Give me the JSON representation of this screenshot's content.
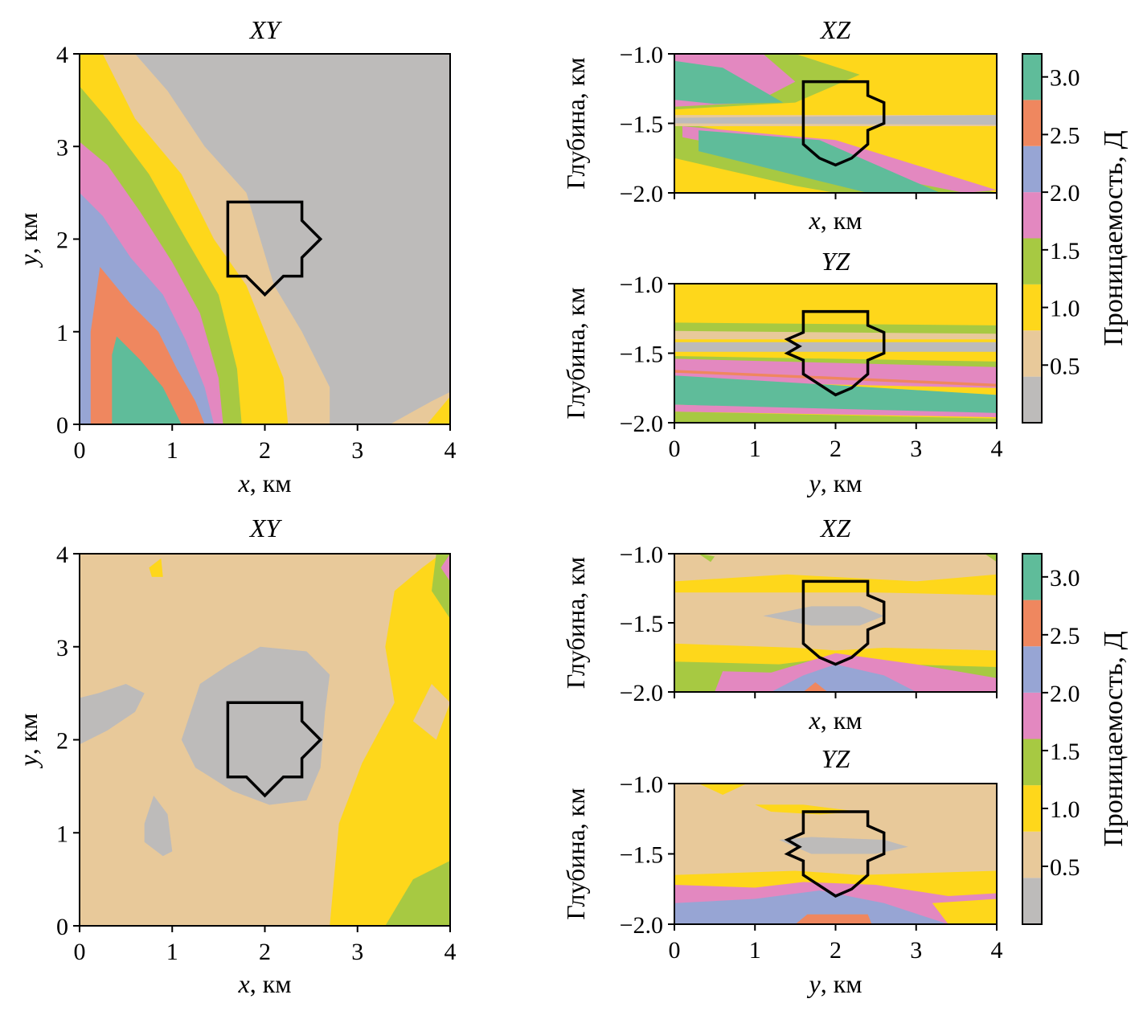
{
  "colors": {
    "gray": "#bdbbba",
    "tan": "#e8c99a",
    "yellow": "#fed71b",
    "green": "#a7c942",
    "pink": "#e388c0",
    "blue": "#97a5d4",
    "orange": "#ef875f",
    "teal": "#5fbc9a",
    "outline": "#000000"
  },
  "chart_data": [
    {
      "id": "top-xy",
      "type": "heatmap",
      "title": "XY",
      "xlabel_var": "x",
      "ylabel_var": "y",
      "unit": "км",
      "xlim": [
        0,
        4
      ],
      "ylim": [
        0,
        4
      ],
      "xticks": [
        "0",
        "1",
        "2",
        "3",
        "4"
      ],
      "yticks": [
        "0",
        "1",
        "2",
        "3",
        "4"
      ],
      "outline": [
        [
          1.6,
          2.4
        ],
        [
          2.4,
          2.4
        ],
        [
          2.4,
          2.2
        ],
        [
          2.6,
          2.0
        ],
        [
          2.4,
          1.8
        ],
        [
          2.4,
          1.6
        ],
        [
          2.2,
          1.6
        ],
        [
          2.0,
          1.4
        ],
        [
          1.8,
          1.6
        ],
        [
          1.6,
          1.6
        ]
      ]
    },
    {
      "id": "top-xz",
      "type": "heatmap",
      "title": "XZ",
      "xlabel_var": "x",
      "unit": "км",
      "ylabel": "Глубина, км",
      "xlim": [
        0,
        4
      ],
      "ylim": [
        -2.0,
        -1.0
      ],
      "xticks": [],
      "yticks": [
        "−2.0",
        "−1.5",
        "−1.0"
      ],
      "outline": [
        [
          1.6,
          -1.2
        ],
        [
          2.4,
          -1.2
        ],
        [
          2.4,
          -1.3
        ],
        [
          2.6,
          -1.35
        ],
        [
          2.6,
          -1.5
        ],
        [
          2.4,
          -1.55
        ],
        [
          2.4,
          -1.65
        ],
        [
          2.2,
          -1.75
        ],
        [
          2.0,
          -1.8
        ],
        [
          1.8,
          -1.75
        ],
        [
          1.6,
          -1.65
        ]
      ]
    },
    {
      "id": "top-yz",
      "type": "heatmap",
      "title": "YZ",
      "xlabel_var": "y",
      "unit": "км",
      "ylabel": "Глубина, км",
      "xlim": [
        0,
        4
      ],
      "ylim": [
        -2.0,
        -1.0
      ],
      "xticks": [
        "0",
        "1",
        "2",
        "3",
        "4"
      ],
      "yticks": [
        "−2.0",
        "−1.5",
        "−1.0"
      ],
      "outline": [
        [
          1.6,
          -1.2
        ],
        [
          2.4,
          -1.2
        ],
        [
          2.4,
          -1.3
        ],
        [
          2.6,
          -1.35
        ],
        [
          2.6,
          -1.5
        ],
        [
          2.4,
          -1.55
        ],
        [
          2.4,
          -1.65
        ],
        [
          2.2,
          -1.75
        ],
        [
          2.0,
          -1.8
        ],
        [
          1.6,
          -1.65
        ],
        [
          1.6,
          -1.55
        ],
        [
          1.4,
          -1.5
        ],
        [
          1.55,
          -1.45
        ],
        [
          1.4,
          -1.4
        ],
        [
          1.6,
          -1.35
        ]
      ]
    },
    {
      "id": "bottom-xy",
      "type": "heatmap",
      "title": "XY",
      "xlabel_var": "x",
      "ylabel_var": "y",
      "unit": "км",
      "xlim": [
        0,
        4
      ],
      "ylim": [
        0,
        4
      ],
      "xticks": [
        "0",
        "1",
        "2",
        "3",
        "4"
      ],
      "yticks": [
        "0",
        "1",
        "2",
        "3",
        "4"
      ],
      "outline": [
        [
          1.6,
          2.4
        ],
        [
          2.4,
          2.4
        ],
        [
          2.4,
          2.2
        ],
        [
          2.6,
          2.0
        ],
        [
          2.4,
          1.8
        ],
        [
          2.4,
          1.6
        ],
        [
          2.2,
          1.6
        ],
        [
          2.0,
          1.4
        ],
        [
          1.8,
          1.6
        ],
        [
          1.6,
          1.6
        ]
      ]
    },
    {
      "id": "bottom-xz",
      "type": "heatmap",
      "title": "XZ",
      "xlabel_var": "x",
      "unit": "км",
      "ylabel": "Глубина, км",
      "xlim": [
        0,
        4
      ],
      "ylim": [
        -2.0,
        -1.0
      ],
      "xticks": [],
      "yticks": [
        "−2.0",
        "−1.5",
        "−1.0"
      ],
      "outline": [
        [
          1.6,
          -1.2
        ],
        [
          2.4,
          -1.2
        ],
        [
          2.4,
          -1.3
        ],
        [
          2.6,
          -1.35
        ],
        [
          2.6,
          -1.5
        ],
        [
          2.4,
          -1.55
        ],
        [
          2.4,
          -1.65
        ],
        [
          2.2,
          -1.75
        ],
        [
          2.0,
          -1.8
        ],
        [
          1.8,
          -1.75
        ],
        [
          1.6,
          -1.65
        ]
      ]
    },
    {
      "id": "bottom-yz",
      "type": "heatmap",
      "title": "YZ",
      "xlabel_var": "y",
      "unit": "км",
      "ylabel": "Глубина, км",
      "xlim": [
        0,
        4
      ],
      "ylim": [
        -2.0,
        -1.0
      ],
      "xticks": [
        "0",
        "1",
        "2",
        "3",
        "4"
      ],
      "yticks": [
        "−2.0",
        "−1.5",
        "−1.0"
      ],
      "outline": [
        [
          1.6,
          -1.2
        ],
        [
          2.4,
          -1.2
        ],
        [
          2.4,
          -1.3
        ],
        [
          2.6,
          -1.35
        ],
        [
          2.6,
          -1.5
        ],
        [
          2.4,
          -1.55
        ],
        [
          2.4,
          -1.65
        ],
        [
          2.2,
          -1.75
        ],
        [
          2.0,
          -1.8
        ],
        [
          1.6,
          -1.65
        ],
        [
          1.6,
          -1.55
        ],
        [
          1.4,
          -1.5
        ],
        [
          1.55,
          -1.45
        ],
        [
          1.4,
          -1.4
        ],
        [
          1.6,
          -1.35
        ]
      ]
    }
  ],
  "colorbar": {
    "label": "Проницаемость, Д",
    "range": [
      0,
      3.2
    ],
    "bins": [
      {
        "from": 0.0,
        "to": 0.4,
        "color": "#bdbbba"
      },
      {
        "from": 0.4,
        "to": 0.8,
        "color": "#e8c99a"
      },
      {
        "from": 0.8,
        "to": 1.2,
        "color": "#fed71b"
      },
      {
        "from": 1.2,
        "to": 1.6,
        "color": "#a7c942"
      },
      {
        "from": 1.6,
        "to": 2.0,
        "color": "#e388c0"
      },
      {
        "from": 2.0,
        "to": 2.4,
        "color": "#97a5d4"
      },
      {
        "from": 2.4,
        "to": 2.8,
        "color": "#ef875f"
      },
      {
        "from": 2.8,
        "to": 3.2,
        "color": "#5fbc9a"
      }
    ],
    "ticks": [
      {
        "value": 0.5,
        "label": "0.5"
      },
      {
        "value": 1.0,
        "label": "1.0"
      },
      {
        "value": 1.5,
        "label": "1.5"
      },
      {
        "value": 2.0,
        "label": "2.0"
      },
      {
        "value": 2.5,
        "label": "2.5"
      },
      {
        "value": 3.0,
        "label": "3.0"
      }
    ]
  }
}
